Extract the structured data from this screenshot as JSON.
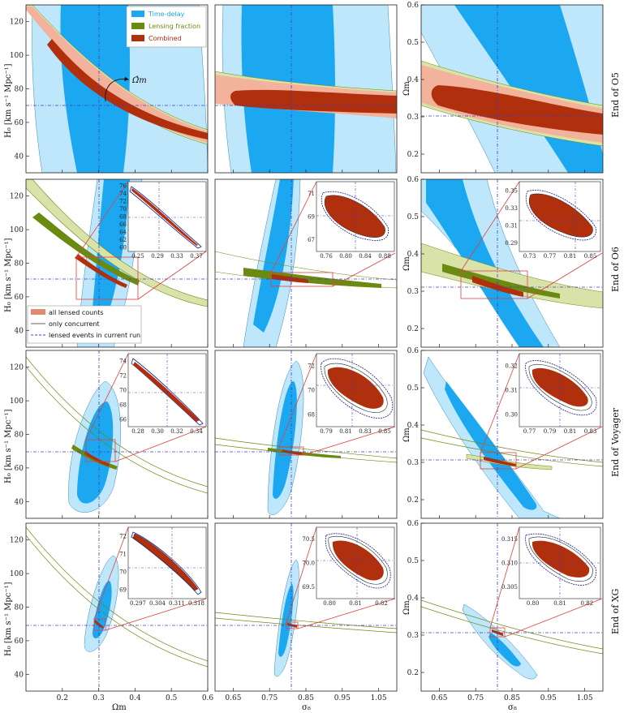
{
  "colors": {
    "timedelay_outer": "#bfe7fb",
    "timedelay_inner": "#1ba8f0",
    "lensing_outer": "#d9e2a8",
    "lensing_inner": "#6b8a12",
    "combined_outer": "#f2b29c",
    "combined_inner": "#b02f0c",
    "truth_line": "#3d3dc8",
    "zoom_box": "#e04040"
  },
  "legend_top": {
    "items": [
      {
        "label": "Time-delay",
        "color": "#1ba8f0"
      },
      {
        "label": "Lensing fraction",
        "color": "#6b8a12"
      },
      {
        "label": "Combined",
        "color": "#b02f0c"
      }
    ]
  },
  "legend_mid": {
    "items": [
      {
        "label": "all lensed counts",
        "style": "patch"
      },
      {
        "label": "only concurrent",
        "style": "solid"
      },
      {
        "label": "lensed events in current run",
        "style": "dashed"
      }
    ]
  },
  "annotation": {
    "label": "Ω̂m"
  },
  "row_labels": [
    "End of O5",
    "End of O6",
    "End of Voyager",
    "End of XG"
  ],
  "axis_labels": {
    "h0": "H₀ [km s⁻¹ Mpc⁻¹]",
    "om": "Ωm",
    "s8": "σ₈"
  },
  "chart_data": {
    "type": "contour-grid",
    "truth": {
      "Om": 0.31,
      "sigma8": 0.81,
      "H0": 70
    },
    "columns": [
      {
        "x": "Om",
        "y": "H0",
        "xlim": [
          0.1,
          0.6
        ],
        "ylim": [
          30,
          130
        ],
        "xticks": [
          "0.2",
          "0.3",
          "0.4",
          "0.5",
          "0.6"
        ],
        "yticks": [
          "40",
          "60",
          "80",
          "100",
          "120"
        ]
      },
      {
        "x": "sigma8",
        "y": "H0",
        "xlim": [
          0.6,
          1.1
        ],
        "ylim": [
          30,
          130
        ],
        "xticks": [
          "0.65",
          "0.75",
          "0.85",
          "0.95",
          "1.05"
        ],
        "yticks": []
      },
      {
        "x": "sigma8",
        "y": "Om",
        "xlim": [
          0.6,
          1.1
        ],
        "ylim": [
          0.15,
          0.6
        ],
        "xticks": [
          "0.65",
          "0.75",
          "0.85",
          "0.95",
          "1.05"
        ],
        "yticks": [
          "0.2",
          "0.3",
          "0.4",
          "0.5",
          "0.6"
        ]
      }
    ],
    "insets": [
      [
        null,
        null,
        null
      ],
      [
        {
          "xticks": [
            "0.25",
            "0.29",
            "0.33",
            "0.37"
          ],
          "yticks": [
            "60",
            "62",
            "64",
            "66",
            "68",
            "70",
            "72",
            "74",
            "76"
          ]
        },
        {
          "xticks": [
            "0.76",
            "0.80",
            "0.84",
            "0.88"
          ],
          "yticks": [
            "67",
            "69",
            "71"
          ]
        },
        {
          "xticks": [
            "0.73",
            "0.77",
            "0.81",
            "0.85"
          ],
          "yticks": [
            "0.29",
            "0.31",
            "0.33",
            "0.35"
          ]
        }
      ],
      [
        {
          "xticks": [
            "0.28",
            "0.30",
            "0.32",
            "0.34"
          ],
          "yticks": [
            "66",
            "68",
            "70",
            "72",
            "74"
          ]
        },
        {
          "xticks": [
            "0.79",
            "0.81",
            "0.83",
            "0.85"
          ],
          "yticks": [
            "68",
            "70",
            "72"
          ]
        },
        {
          "xticks": [
            "0.77",
            "0.79",
            "0.81",
            "0.83"
          ],
          "yticks": [
            "0.30",
            "0.31",
            "0.32"
          ]
        }
      ],
      [
        {
          "xticks": [
            "0.297",
            "0.304",
            "0.311",
            "0.318"
          ],
          "yticks": [
            "69",
            "70",
            "71",
            "72"
          ]
        },
        {
          "xticks": [
            "0.80",
            "0.81",
            "0.82"
          ],
          "yticks": [
            "69.5",
            "70.0",
            "70.5"
          ]
        },
        {
          "xticks": [
            "0.80",
            "0.81",
            "0.82"
          ],
          "yticks": [
            "0.305",
            "0.310",
            "0.315"
          ]
        }
      ]
    ]
  }
}
